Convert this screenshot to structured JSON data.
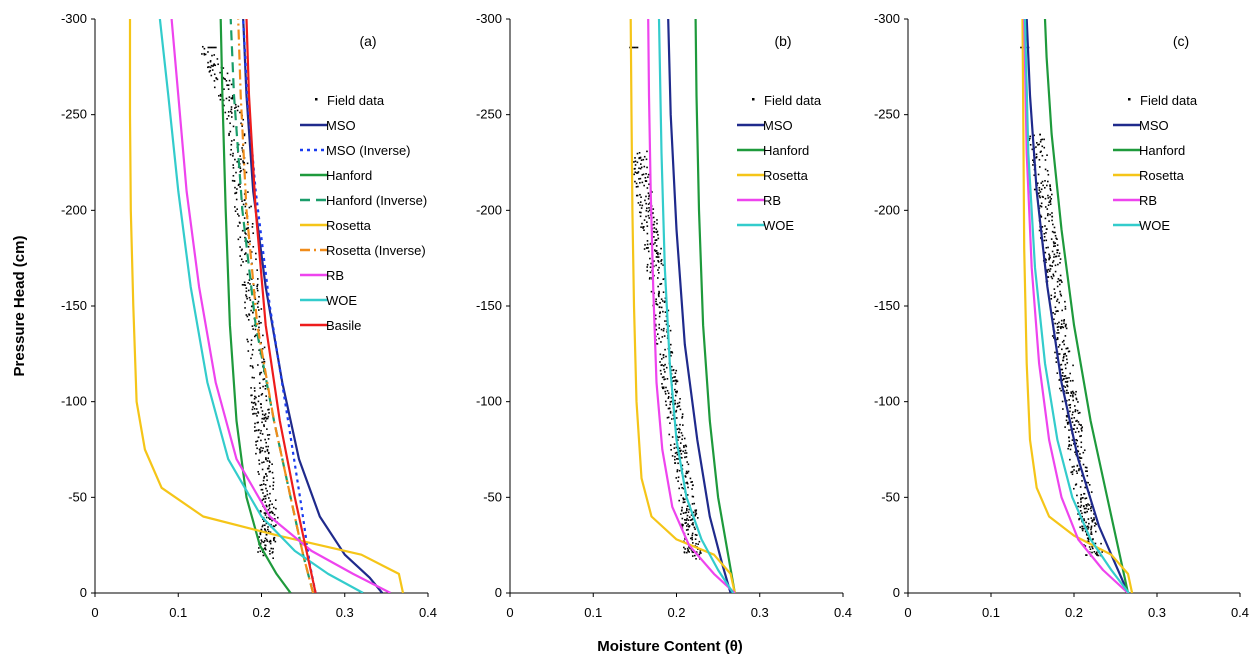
{
  "figure": {
    "ylabel": "Pressure Head (cm)",
    "xlabel": "Moisture Content (θ)"
  },
  "chart_data": [
    {
      "type": "line",
      "panel_label": "(a)",
      "xlim": [
        0,
        0.4
      ],
      "ylim": [
        0,
        -300
      ],
      "xticks": [
        "0",
        "0.1",
        "0.2",
        "0.3",
        "0.4"
      ],
      "yticks": [
        "0",
        "-50",
        "-100",
        "-150",
        "-200",
        "-250",
        "-300"
      ],
      "grid": false,
      "legend_position": "top-right",
      "series": [
        {
          "name": "Field data",
          "style": "markers",
          "color": "#000000"
        },
        {
          "name": "MSO",
          "style": "solid",
          "color": "#1f2a8c",
          "points": [
            [
              0.345,
              0
            ],
            [
              0.33,
              -8
            ],
            [
              0.3,
              -20
            ],
            [
              0.27,
              -40
            ],
            [
              0.245,
              -70
            ],
            [
              0.225,
              -110
            ],
            [
              0.205,
              -160
            ],
            [
              0.19,
              -210
            ],
            [
              0.182,
              -260
            ],
            [
              0.178,
              -300
            ]
          ]
        },
        {
          "name": "MSO (Inverse)",
          "style": "dotted",
          "color": "#1a3cf0",
          "points": [
            [
              0.265,
              0
            ],
            [
              0.258,
              -15
            ],
            [
              0.248,
              -45
            ],
            [
              0.232,
              -90
            ],
            [
              0.21,
              -150
            ],
            [
              0.193,
              -210
            ],
            [
              0.183,
              -260
            ],
            [
              0.178,
              -300
            ]
          ]
        },
        {
          "name": "Hanford",
          "style": "solid",
          "color": "#1e9a3c",
          "points": [
            [
              0.235,
              0
            ],
            [
              0.218,
              -10
            ],
            [
              0.198,
              -25
            ],
            [
              0.182,
              -50
            ],
            [
              0.17,
              -90
            ],
            [
              0.162,
              -140
            ],
            [
              0.157,
              -200
            ],
            [
              0.153,
              -260
            ],
            [
              0.151,
              -300
            ]
          ]
        },
        {
          "name": "Hanford (Inverse)",
          "style": "dashed",
          "color": "#1a9d6a",
          "points": [
            [
              0.262,
              0
            ],
            [
              0.25,
              -20
            ],
            [
              0.235,
              -50
            ],
            [
              0.215,
              -90
            ],
            [
              0.193,
              -140
            ],
            [
              0.177,
              -200
            ],
            [
              0.167,
              -260
            ],
            [
              0.163,
              -300
            ]
          ]
        },
        {
          "name": "Rosetta",
          "style": "solid",
          "color": "#f5c518",
          "points": [
            [
              0.37,
              0
            ],
            [
              0.365,
              -10
            ],
            [
              0.32,
              -20
            ],
            [
              0.22,
              -30
            ],
            [
              0.13,
              -40
            ],
            [
              0.08,
              -55
            ],
            [
              0.06,
              -75
            ],
            [
              0.05,
              -100
            ],
            [
              0.046,
              -150
            ],
            [
              0.043,
              -200
            ],
            [
              0.042,
              -250
            ],
            [
              0.042,
              -300
            ]
          ]
        },
        {
          "name": "Rosetta (Inverse)",
          "style": "dash-dot",
          "color": "#f08c1a",
          "points": [
            [
              0.262,
              0
            ],
            [
              0.25,
              -20
            ],
            [
              0.235,
              -50
            ],
            [
              0.215,
              -90
            ],
            [
              0.195,
              -140
            ],
            [
              0.182,
              -200
            ],
            [
              0.175,
              -260
            ],
            [
              0.172,
              -300
            ]
          ]
        },
        {
          "name": "RB",
          "style": "solid",
          "color": "#ee44ee",
          "points": [
            [
              0.355,
              0
            ],
            [
              0.31,
              -10
            ],
            [
              0.26,
              -22
            ],
            [
              0.21,
              -40
            ],
            [
              0.17,
              -70
            ],
            [
              0.145,
              -110
            ],
            [
              0.125,
              -160
            ],
            [
              0.11,
              -210
            ],
            [
              0.1,
              -260
            ],
            [
              0.092,
              -300
            ]
          ]
        },
        {
          "name": "WOE",
          "style": "solid",
          "color": "#33cccc",
          "points": [
            [
              0.322,
              0
            ],
            [
              0.28,
              -10
            ],
            [
              0.24,
              -22
            ],
            [
              0.2,
              -40
            ],
            [
              0.16,
              -70
            ],
            [
              0.135,
              -110
            ],
            [
              0.115,
              -160
            ],
            [
              0.1,
              -210
            ],
            [
              0.088,
              -260
            ],
            [
              0.078,
              -300
            ]
          ]
        },
        {
          "name": "Basile",
          "style": "solid",
          "color": "#ee1c1c",
          "points": [
            [
              0.265,
              0
            ],
            [
              0.255,
              -20
            ],
            [
              0.24,
              -50
            ],
            [
              0.222,
              -90
            ],
            [
              0.205,
              -140
            ],
            [
              0.193,
              -200
            ],
            [
              0.185,
              -260
            ],
            [
              0.182,
              -300
            ]
          ]
        }
      ],
      "field_data_points": [
        [
          0.205,
          -20
        ],
        [
          0.21,
          -40
        ],
        [
          0.203,
          -70
        ],
        [
          0.198,
          -100
        ],
        [
          0.19,
          -150
        ],
        [
          0.178,
          -200
        ],
        [
          0.168,
          -250
        ],
        [
          0.135,
          -285
        ],
        [
          0.14,
          -285
        ]
      ]
    },
    {
      "type": "line",
      "panel_label": "(b)",
      "xlim": [
        0,
        0.4
      ],
      "ylim": [
        0,
        -300
      ],
      "xticks": [
        "0",
        "0.1",
        "0.2",
        "0.3",
        "0.4"
      ],
      "yticks": [
        "0",
        "-50",
        "-100",
        "-150",
        "-200",
        "-250",
        "-300"
      ],
      "grid": false,
      "legend_position": "top-right",
      "series": [
        {
          "name": "Field data",
          "style": "markers",
          "color": "#000000"
        },
        {
          "name": "MSO",
          "style": "solid",
          "color": "#1f2a8c",
          "points": [
            [
              0.265,
              0
            ],
            [
              0.255,
              -15
            ],
            [
              0.24,
              -40
            ],
            [
              0.225,
              -80
            ],
            [
              0.21,
              -130
            ],
            [
              0.2,
              -190
            ],
            [
              0.193,
              -250
            ],
            [
              0.19,
              -300
            ]
          ]
        },
        {
          "name": "Hanford",
          "style": "solid",
          "color": "#1e9a3c",
          "points": [
            [
              0.27,
              0
            ],
            [
              0.262,
              -20
            ],
            [
              0.25,
              -50
            ],
            [
              0.24,
              -90
            ],
            [
              0.232,
              -140
            ],
            [
              0.227,
              -200
            ],
            [
              0.224,
              -260
            ],
            [
              0.223,
              -300
            ]
          ]
        },
        {
          "name": "Rosetta",
          "style": "solid",
          "color": "#f5c518",
          "points": [
            [
              0.27,
              0
            ],
            [
              0.265,
              -10
            ],
            [
              0.245,
              -20
            ],
            [
              0.2,
              -28
            ],
            [
              0.17,
              -40
            ],
            [
              0.158,
              -60
            ],
            [
              0.152,
              -100
            ],
            [
              0.149,
              -150
            ],
            [
              0.147,
              -200
            ],
            [
              0.146,
              -250
            ],
            [
              0.145,
              -300
            ]
          ]
        },
        {
          "name": "RB",
          "style": "solid",
          "color": "#ee44ee",
          "points": [
            [
              0.27,
              0
            ],
            [
              0.245,
              -10
            ],
            [
              0.215,
              -25
            ],
            [
              0.195,
              -45
            ],
            [
              0.183,
              -75
            ],
            [
              0.176,
              -110
            ],
            [
              0.172,
              -160
            ],
            [
              0.169,
              -210
            ],
            [
              0.167,
              -260
            ],
            [
              0.166,
              -300
            ]
          ]
        },
        {
          "name": "WOE",
          "style": "solid",
          "color": "#33cccc",
          "points": [
            [
              0.268,
              0
            ],
            [
              0.25,
              -12
            ],
            [
              0.23,
              -28
            ],
            [
              0.212,
              -50
            ],
            [
              0.2,
              -80
            ],
            [
              0.192,
              -120
            ],
            [
              0.186,
              -170
            ],
            [
              0.182,
              -230
            ],
            [
              0.179,
              -300
            ]
          ]
        }
      ],
      "field_data_points": [
        [
          0.22,
          -20
        ],
        [
          0.215,
          -40
        ],
        [
          0.205,
          -70
        ],
        [
          0.195,
          -100
        ],
        [
          0.185,
          -130
        ],
        [
          0.175,
          -170
        ],
        [
          0.165,
          -200
        ],
        [
          0.155,
          -230
        ],
        [
          0.148,
          -285
        ]
      ]
    },
    {
      "type": "line",
      "panel_label": "(c)",
      "xlim": [
        0,
        0.4
      ],
      "ylim": [
        0,
        -300
      ],
      "xticks": [
        "0",
        "0.1",
        "0.2",
        "0.3",
        "0.4"
      ],
      "yticks": [
        "0",
        "-50",
        "-100",
        "-150",
        "-200",
        "-250",
        "-300"
      ],
      "grid": false,
      "legend_position": "top-right",
      "series": [
        {
          "name": "Field data",
          "style": "markers",
          "color": "#000000"
        },
        {
          "name": "MSO",
          "style": "solid",
          "color": "#1f2a8c",
          "points": [
            [
              0.265,
              0
            ],
            [
              0.25,
              -15
            ],
            [
              0.23,
              -35
            ],
            [
              0.205,
              -70
            ],
            [
              0.185,
              -110
            ],
            [
              0.168,
              -160
            ],
            [
              0.155,
              -210
            ],
            [
              0.147,
              -260
            ],
            [
              0.143,
              -300
            ]
          ]
        },
        {
          "name": "Hanford",
          "style": "solid",
          "color": "#1e9a3c",
          "points": [
            [
              0.265,
              0
            ],
            [
              0.255,
              -20
            ],
            [
              0.24,
              -50
            ],
            [
              0.22,
              -90
            ],
            [
              0.2,
              -140
            ],
            [
              0.185,
              -190
            ],
            [
              0.173,
              -240
            ],
            [
              0.167,
              -280
            ],
            [
              0.165,
              -300
            ]
          ]
        },
        {
          "name": "Rosetta",
          "style": "solid",
          "color": "#f5c518",
          "points": [
            [
              0.27,
              0
            ],
            [
              0.265,
              -10
            ],
            [
              0.245,
              -20
            ],
            [
              0.2,
              -30
            ],
            [
              0.17,
              -40
            ],
            [
              0.155,
              -55
            ],
            [
              0.147,
              -80
            ],
            [
              0.143,
              -120
            ],
            [
              0.14,
              -180
            ],
            [
              0.139,
              -240
            ],
            [
              0.138,
              -300
            ]
          ]
        },
        {
          "name": "RB",
          "style": "solid",
          "color": "#ee44ee",
          "points": [
            [
              0.265,
              0
            ],
            [
              0.235,
              -12
            ],
            [
              0.205,
              -28
            ],
            [
              0.185,
              -50
            ],
            [
              0.17,
              -80
            ],
            [
              0.158,
              -120
            ],
            [
              0.149,
              -170
            ],
            [
              0.143,
              -230
            ],
            [
              0.14,
              -300
            ]
          ]
        },
        {
          "name": "WOE",
          "style": "solid",
          "color": "#33cccc",
          "points": [
            [
              0.266,
              0
            ],
            [
              0.245,
              -12
            ],
            [
              0.22,
              -28
            ],
            [
              0.198,
              -50
            ],
            [
              0.18,
              -80
            ],
            [
              0.165,
              -120
            ],
            [
              0.153,
              -170
            ],
            [
              0.145,
              -230
            ],
            [
              0.141,
              -300
            ]
          ]
        }
      ],
      "field_data_points": [
        [
          0.225,
          -20
        ],
        [
          0.215,
          -40
        ],
        [
          0.205,
          -70
        ],
        [
          0.195,
          -100
        ],
        [
          0.185,
          -130
        ],
        [
          0.175,
          -170
        ],
        [
          0.165,
          -200
        ],
        [
          0.155,
          -240
        ],
        [
          0.14,
          -285
        ]
      ]
    }
  ]
}
